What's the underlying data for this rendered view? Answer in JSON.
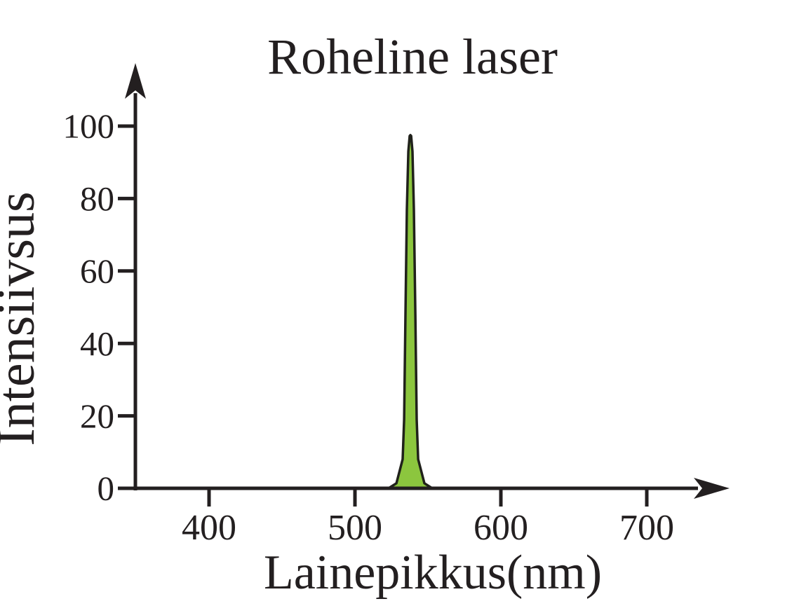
{
  "figure": {
    "background_color": "#ffffff",
    "ink_color": "#231f20"
  },
  "chart_data": {
    "type": "area",
    "title": "Roheline laser",
    "xlabel": "Lainepikkus(nm)",
    "ylabel": "Intensiivsus",
    "x_ticks": [
      400,
      500,
      600,
      700
    ],
    "y_ticks": [
      0,
      20,
      40,
      60,
      80,
      100
    ],
    "xlim": [
      340,
      755
    ],
    "ylim": [
      0,
      110
    ],
    "grid": false,
    "legend": false,
    "series": [
      {
        "name": "laser-spectrum-peak",
        "peak_wavelength_nm": 538,
        "peak_intensity": 97.5,
        "fill_color": "#8cc63e",
        "stroke_color": "#20211b",
        "points": [
          [
            523.0,
            0
          ],
          [
            528.4,
            1.4
          ],
          [
            532.7,
            8
          ],
          [
            533.7,
            19
          ],
          [
            534.6,
            48
          ],
          [
            535.6,
            77
          ],
          [
            536.6,
            93
          ],
          [
            537.5,
            97.3
          ],
          [
            538.0,
            97.5
          ],
          [
            538.5,
            97.3
          ],
          [
            539.4,
            93
          ],
          [
            540.4,
            77
          ],
          [
            541.4,
            48
          ],
          [
            542.3,
            19
          ],
          [
            543.3,
            8
          ],
          [
            547.6,
            1.4
          ],
          [
            553.0,
            0
          ]
        ]
      }
    ]
  }
}
